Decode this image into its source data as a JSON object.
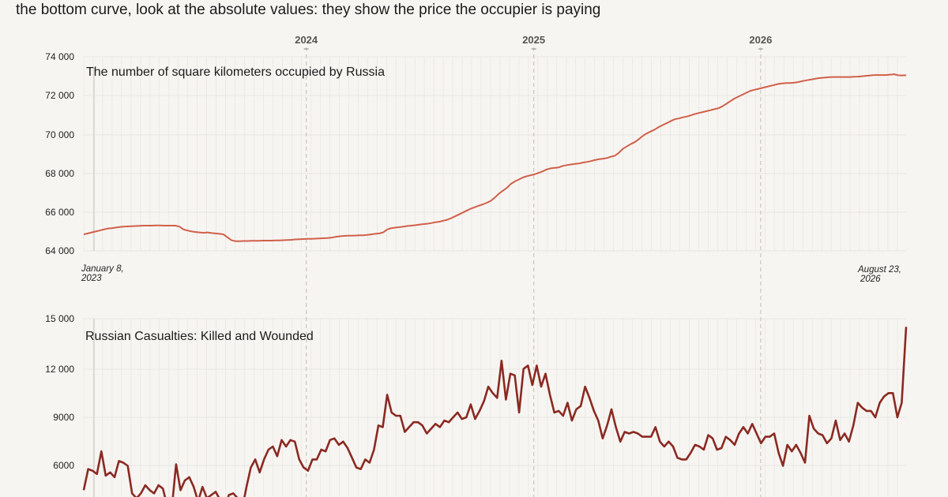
{
  "caption": "the bottom curve, look at the absolute values: they show the price the occupier is paying",
  "years": [
    "2024",
    "2025",
    "2026"
  ],
  "start_date": [
    "January 8,",
    "2023"
  ],
  "end_date": [
    "August 23,",
    "2026"
  ],
  "colors": {
    "territory": "#d0604a",
    "casualties": "#8a2a22",
    "grid": "#e6e2dd",
    "year_line": "#c9c4be"
  },
  "chart_data": [
    {
      "type": "line",
      "title": "The number of square kilometers occupied by Russia",
      "x_range": [
        "2023-01-08",
        "2026-08-23"
      ],
      "ylim": [
        64000,
        74000
      ],
      "yticks": [
        "64 000",
        "66 000",
        "68 000",
        "70 000",
        "72 000",
        "74 000"
      ],
      "grid": true,
      "series": [
        {
          "values": [
            64850,
            64900,
            64950,
            65000,
            65050,
            65100,
            65150,
            65170,
            65200,
            65230,
            65250,
            65260,
            65270,
            65280,
            65290,
            65300,
            65300,
            65300,
            65310,
            65310,
            65300,
            65300,
            65300,
            65300,
            65250,
            65100,
            65050,
            65000,
            64970,
            64950,
            64930,
            64950,
            64920,
            64900,
            64880,
            64850,
            64700,
            64550,
            64500,
            64500,
            64510,
            64510,
            64520,
            64520,
            64520,
            64530,
            64530,
            64530,
            64540,
            64540,
            64550,
            64560,
            64570,
            64590,
            64600,
            64610,
            64620,
            64620,
            64630,
            64640,
            64650,
            64660,
            64680,
            64720,
            64750,
            64770,
            64780,
            64780,
            64790,
            64800,
            64800,
            64820,
            64850,
            64880,
            64900,
            64950,
            65100,
            65170,
            65200,
            65220,
            65250,
            65280,
            65300,
            65320,
            65350,
            65380,
            65400,
            65430,
            65470,
            65500,
            65550,
            65600,
            65680,
            65780,
            65880,
            65980,
            66080,
            66180,
            66250,
            66330,
            66400,
            66480,
            66580,
            66750,
            66950,
            67100,
            67250,
            67450,
            67580,
            67680,
            67780,
            67850,
            67900,
            67950,
            68020,
            68100,
            68200,
            68250,
            68280,
            68300,
            68380,
            68420,
            68450,
            68480,
            68500,
            68550,
            68580,
            68620,
            68680,
            68720,
            68750,
            68780,
            68850,
            68900,
            69050,
            69250,
            69380,
            69500,
            69600,
            69750,
            69920,
            70050,
            70150,
            70250,
            70380,
            70480,
            70580,
            70680,
            70780,
            70820,
            70880,
            70920,
            70980,
            71050,
            71100,
            71150,
            71200,
            71250,
            71300,
            71350,
            71450,
            71580,
            71720,
            71850,
            71950,
            72050,
            72150,
            72250,
            72300,
            72350,
            72400,
            72450,
            72500,
            72550,
            72600,
            72630,
            72650,
            72650,
            72670,
            72700,
            72750,
            72790,
            72820,
            72860,
            72900,
            72920,
            72940,
            72950,
            72960,
            72960,
            72960,
            72960,
            72960,
            72970,
            72980,
            73000,
            73020,
            73040,
            73060,
            73060,
            73060,
            73060,
            73080,
            73100,
            73050,
            73040,
            73050
          ]
        }
      ]
    },
    {
      "type": "line",
      "title": "Russian Casualties: Killed and Wounded",
      "x_range": [
        "2023-01-08",
        "2026-08-23"
      ],
      "ylim": [
        3000,
        15000
      ],
      "yticks": [
        "6000",
        "9000",
        "12 000",
        "15 000"
      ],
      "grid": true,
      "series": [
        {
          "values": [
            4400,
            5700,
            5600,
            5400,
            6800,
            5300,
            5500,
            5200,
            6200,
            6100,
            5900,
            4200,
            3900,
            4200,
            4700,
            4400,
            4200,
            4700,
            4500,
            3400,
            3200,
            6000,
            4400,
            5000,
            5200,
            4600,
            3700,
            4600,
            3900,
            4100,
            4300,
            3800,
            3300,
            4100,
            4200,
            3900,
            3200,
            4600,
            5800,
            6300,
            5500,
            6300,
            6900,
            7100,
            6500,
            7500,
            7100,
            7500,
            7400,
            6300,
            5800,
            5600,
            6300,
            6300,
            6900,
            6800,
            7500,
            7600,
            7200,
            7400,
            7000,
            6400,
            5800,
            5700,
            6300,
            6100,
            6900,
            8400,
            8300,
            10300,
            9200,
            9000,
            9000,
            8000,
            8300,
            8600,
            8600,
            8400,
            7900,
            8200,
            8500,
            8300,
            8700,
            8600,
            8900,
            9200,
            8800,
            8900,
            9700,
            8800,
            9300,
            9900,
            10800,
            10400,
            10100,
            12400,
            10000,
            11600,
            11500,
            9200,
            11900,
            12100,
            10900,
            12100,
            10800,
            11600,
            10300,
            9200,
            9300,
            9000,
            9800,
            8700,
            9400,
            9600,
            10800,
            10100,
            9300,
            8700,
            7600,
            8400,
            9400,
            8300,
            7400,
            8000,
            7900,
            8000,
            7900,
            7700,
            7700,
            7700,
            8300,
            7400,
            7100,
            7400,
            7100,
            6400,
            6300,
            6300,
            6700,
            7200,
            7100,
            6900,
            7800,
            7600,
            6900,
            7000,
            7700,
            7500,
            7200,
            7900,
            8300,
            7900,
            8500,
            7900,
            7300,
            7700,
            7700,
            7900,
            6700,
            5900,
            7200,
            6800,
            7200,
            6700,
            6100,
            9000,
            8200,
            7900,
            7800,
            7300,
            7600,
            8700,
            7500,
            7900,
            7400,
            8400,
            9800,
            9500,
            9300,
            9300,
            8900,
            9800,
            10200,
            10400,
            10400,
            8900,
            9800,
            14500
          ]
        }
      ]
    }
  ]
}
